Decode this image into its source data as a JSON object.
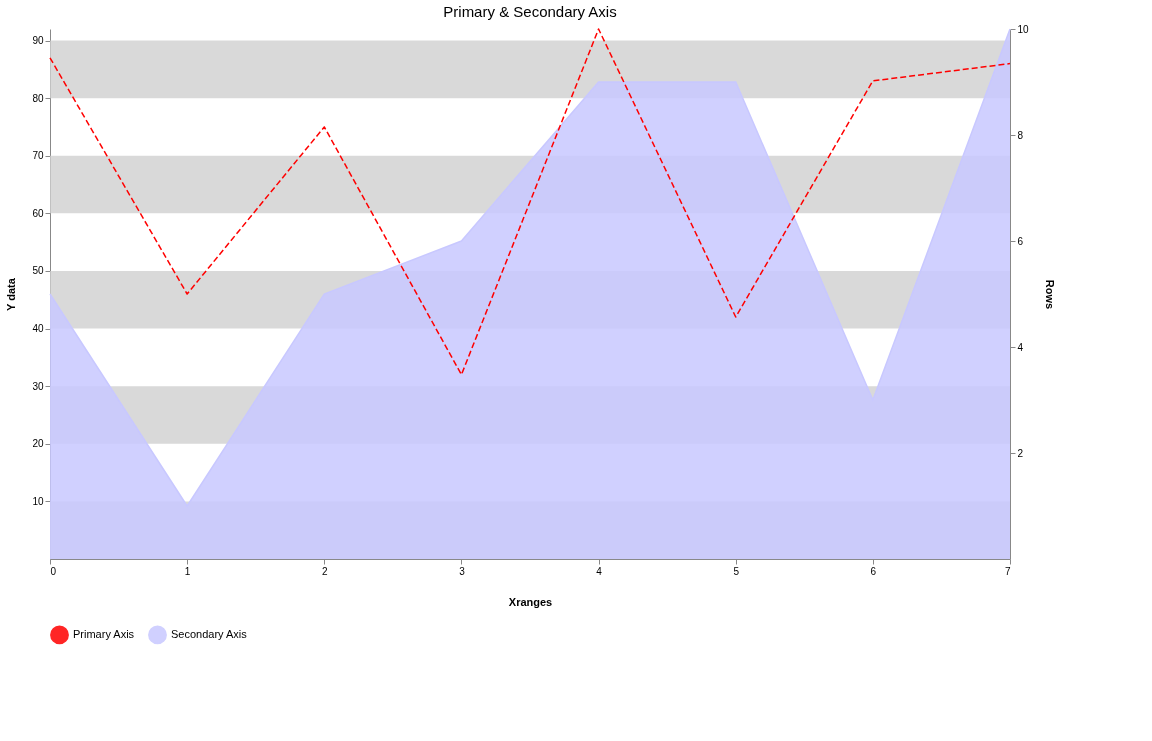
{
  "chart_data": {
    "type": "line",
    "title": "Primary & Secondary Axis",
    "xlabel": "Xranges",
    "ylabel": "Y data",
    "y2label": "Rows",
    "x": [
      0,
      1,
      2,
      3,
      4,
      5,
      6,
      7
    ],
    "series": [
      {
        "name": "Primary Axis",
        "color": "#ff0000",
        "values": [
          87,
          46,
          75,
          32,
          92,
          42,
          83,
          86
        ]
      },
      {
        "name": "Secondary Axis",
        "type": "area",
        "axis": "y2",
        "color": "#c8c8ff",
        "values": [
          5,
          1,
          5,
          6,
          9,
          9,
          3,
          10
        ]
      }
    ],
    "xlim": [
      0,
      7
    ],
    "xticks": [
      0,
      1,
      2,
      3,
      4,
      5,
      6,
      7
    ],
    "ylim": [
      0,
      92
    ],
    "yticks": [
      10,
      20,
      30,
      40,
      50,
      60,
      70,
      80,
      90
    ],
    "y2lim": [
      0,
      10
    ],
    "y2ticks": [
      2,
      4,
      6,
      8,
      10
    ],
    "bands": [
      {
        "axis": "y",
        "from": 80,
        "to": 90,
        "color": "#d0d0d0"
      },
      {
        "axis": "y",
        "from": 60,
        "to": 70,
        "color": "#d0d0d0"
      },
      {
        "axis": "y",
        "from": 40,
        "to": 50,
        "color": "#d0d0d0"
      },
      {
        "axis": "y",
        "from": 20,
        "to": 30,
        "color": "#d0d0d0"
      },
      {
        "axis": "y",
        "from": 0,
        "to": 10,
        "color": "#d0d0d0"
      }
    ],
    "grid": false,
    "legend": "bottom",
    "marker": "none",
    "line_style": "dashed"
  }
}
